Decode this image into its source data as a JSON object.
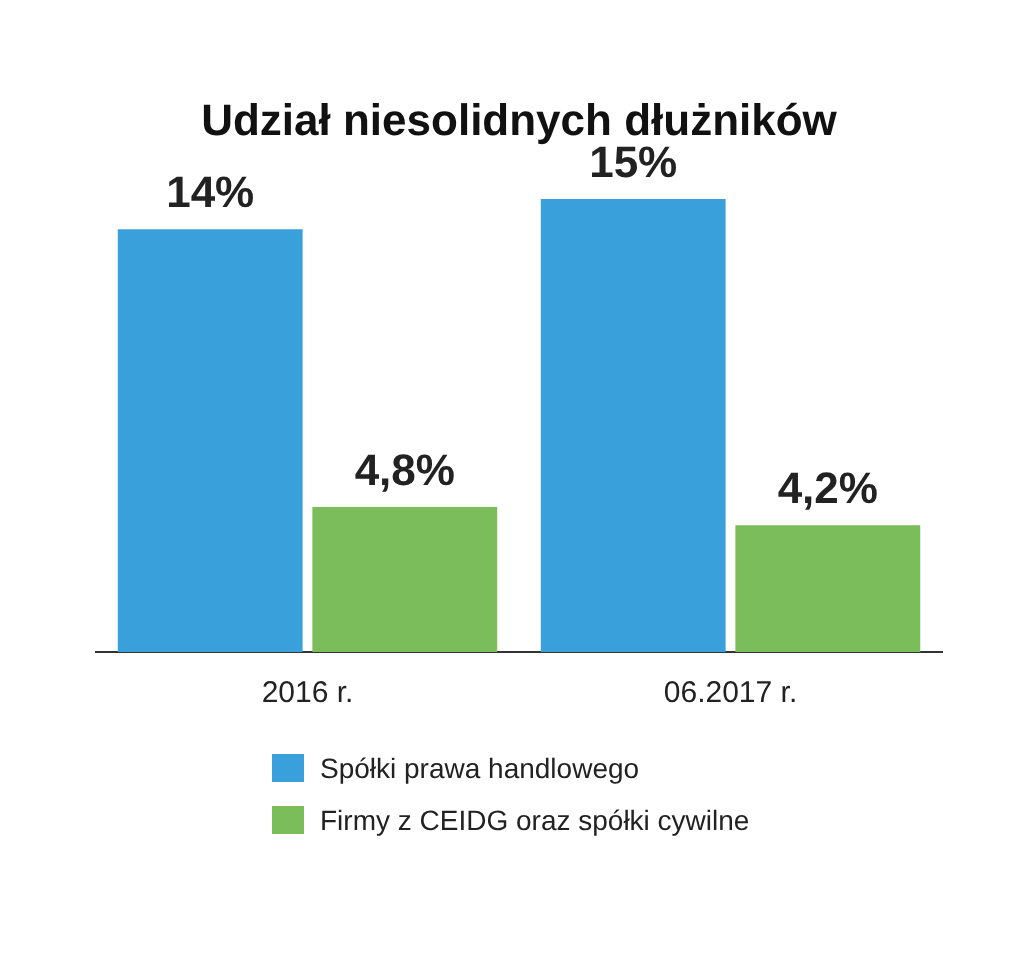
{
  "chart_data": {
    "type": "bar",
    "title": "Udział niesolidnych dłużników",
    "categories": [
      "2016 r.",
      "06.2017 r."
    ],
    "series": [
      {
        "name": "Spółki prawa handlowego",
        "color": "#3aa0db",
        "values": [
          14,
          15
        ],
        "value_labels": [
          "14%",
          "15%"
        ]
      },
      {
        "name": "Firmy z CEIDG oraz spółki cywilne",
        "color": "#7cbd5b",
        "values": [
          4.8,
          4.2
        ],
        "value_labels": [
          "4,8%",
          "4,2%"
        ]
      }
    ],
    "legend": "bottom",
    "grid": false
  }
}
